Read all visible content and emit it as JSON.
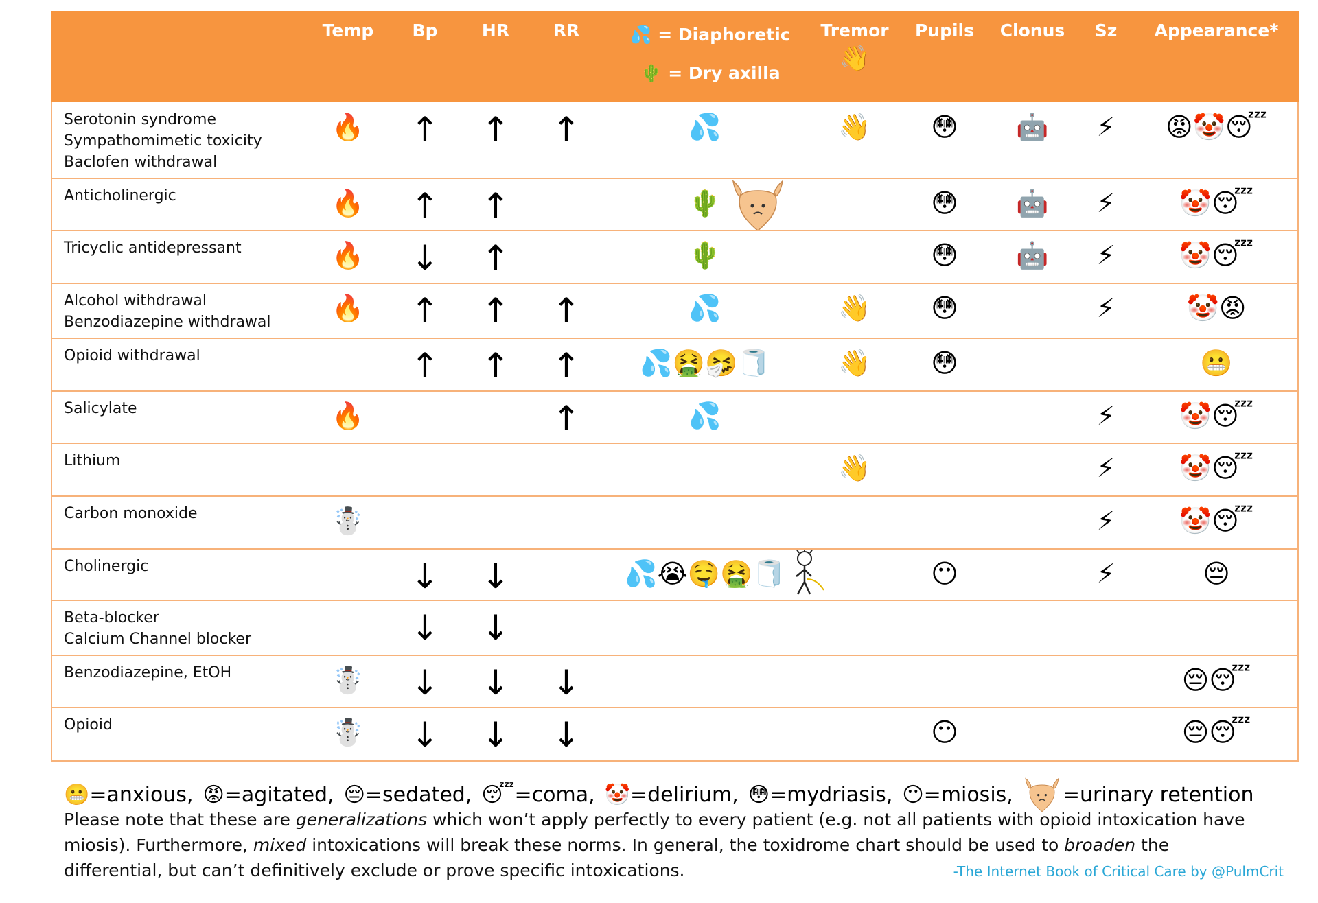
{
  "header": {
    "columns": [
      "Temp",
      "Bp",
      "HR",
      "RR",
      null,
      "Tremor",
      "Pupils",
      "Clonus",
      "Sz",
      "Appearance*"
    ],
    "sweat_key": [
      "💦 = Diaphoretic",
      "🌵 = Dry axilla"
    ],
    "tremor_icon": "👋"
  },
  "table": {
    "rows": [
      {
        "name": [
          "Serotonin syndrome",
          "Sympathomimetic toxicity",
          "Baclofen withdrawal"
        ],
        "cells": [
          "🔥",
          "↑",
          "↑",
          "↑",
          "💦",
          "👋",
          "😳",
          "🤖",
          "⚡",
          "😡🤡😴"
        ]
      },
      {
        "name": [
          "Anticholinergic"
        ],
        "cells": [
          "🔥",
          "↑",
          "↑",
          null,
          "🌵",
          null,
          "😳",
          "🤖",
          "⚡",
          "🤡😴"
        ]
      },
      {
        "name": [
          "Tricyclic antidepressant"
        ],
        "cells": [
          "🔥",
          "↓",
          "↑",
          null,
          "🌵",
          null,
          "😳",
          "🤖",
          "⚡",
          "🤡😴"
        ]
      },
      {
        "name": [
          "Alcohol withdrawal",
          "Benzodiazepine withdrawal"
        ],
        "cells": [
          "🔥",
          "↑",
          "↑",
          "↑",
          "💦",
          "👋",
          "😳",
          null,
          "⚡",
          "🤡😡"
        ]
      },
      {
        "name": [
          "Opioid withdrawal"
        ],
        "cells": [
          null,
          "↑",
          "↑",
          "↑",
          "💦🤮🤧🧻",
          "👋",
          "😳",
          null,
          null,
          "😬"
        ]
      },
      {
        "name": [
          "Salicylate"
        ],
        "cells": [
          "🔥",
          null,
          null,
          "↑",
          "💦",
          null,
          null,
          null,
          "⚡",
          "🤡😴"
        ]
      },
      {
        "name": [
          "Lithium"
        ],
        "cells": [
          null,
          null,
          null,
          null,
          null,
          "👋",
          null,
          null,
          "⚡",
          "🤡😴"
        ]
      },
      {
        "name": [
          "Carbon monoxide"
        ],
        "cells": [
          "☃️",
          null,
          null,
          null,
          null,
          null,
          null,
          null,
          "⚡",
          "🤡😴"
        ]
      },
      {
        "name": [
          "Cholinergic"
        ],
        "cells": [
          null,
          "↓",
          "↓",
          null,
          "💦😭🤤🤮🧻",
          null,
          "😶",
          null,
          "⚡",
          "😔"
        ]
      },
      {
        "name": [
          "Beta-blocker",
          "Calcium Channel blocker"
        ],
        "cells": [
          null,
          "↓",
          "↓",
          null,
          null,
          null,
          null,
          null,
          null,
          null
        ]
      },
      {
        "name": [
          "Benzodiazepine, EtOH"
        ],
        "cells": [
          "☃️",
          "↓",
          "↓",
          "↓",
          null,
          null,
          null,
          null,
          null,
          "😔😴"
        ]
      },
      {
        "name": [
          "Opioid"
        ],
        "cells": [
          "☃️",
          "↓",
          "↓",
          "↓",
          null,
          null,
          "😶",
          null,
          null,
          "😔😴"
        ]
      }
    ]
  },
  "legend": {
    "items": [
      "😬=anxious,",
      "😡=agitated,",
      "😔=sedated,",
      "😴=coma,",
      "🤡=delirium,",
      "😳=mydriasis,",
      "😶=miosis,"
    ],
    "retention": "=urinary retention"
  },
  "note": [
    {
      "text": "Please note that these are "
    },
    {
      "text": "generalizations",
      "italic": true
    },
    {
      "text": " which won’t apply perfectly to every patient (e.g. not all patients with opioid intoxication have miosis).  Furthermore, "
    },
    {
      "text": "mixed",
      "italic": true
    },
    {
      "text": " intoxications will break these norms.  In general, the toxidrome chart should be used to "
    },
    {
      "text": "broaden",
      "italic": true
    },
    {
      "text": " the differential, but can’t definitively exclude or prove specific intoxications."
    }
  ],
  "credit": "-The Internet Book of Critical Care by @PulmCrit"
}
